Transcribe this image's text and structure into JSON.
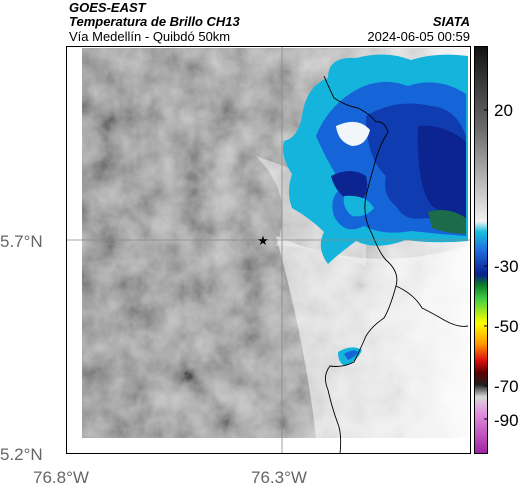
{
  "header": {
    "satellite": "GOES-EAST",
    "product": "Temperatura de Brillo CH13",
    "route": "Vía Medellín - Quibdó 50km",
    "org": "SIATA",
    "datetime": "2024-06-05 00:59"
  },
  "axes": {
    "y_ticks": [
      "5.7°N",
      "5.2°N"
    ],
    "x_ticks": [
      "76.8°W",
      "76.3°W"
    ]
  },
  "colorbar": {
    "ticks": [
      "20",
      "-30",
      "-50",
      "-70",
      "-90"
    ]
  },
  "marker": {
    "symbol": "★",
    "name": "reference-point"
  },
  "colors": {
    "cloud_cold_dark": "#0b1f8f",
    "cloud_cold": "#1552d8",
    "cloud_cyan": "#14b4dc",
    "background_gray": "#8c8c8c",
    "border_line": "#000000"
  }
}
